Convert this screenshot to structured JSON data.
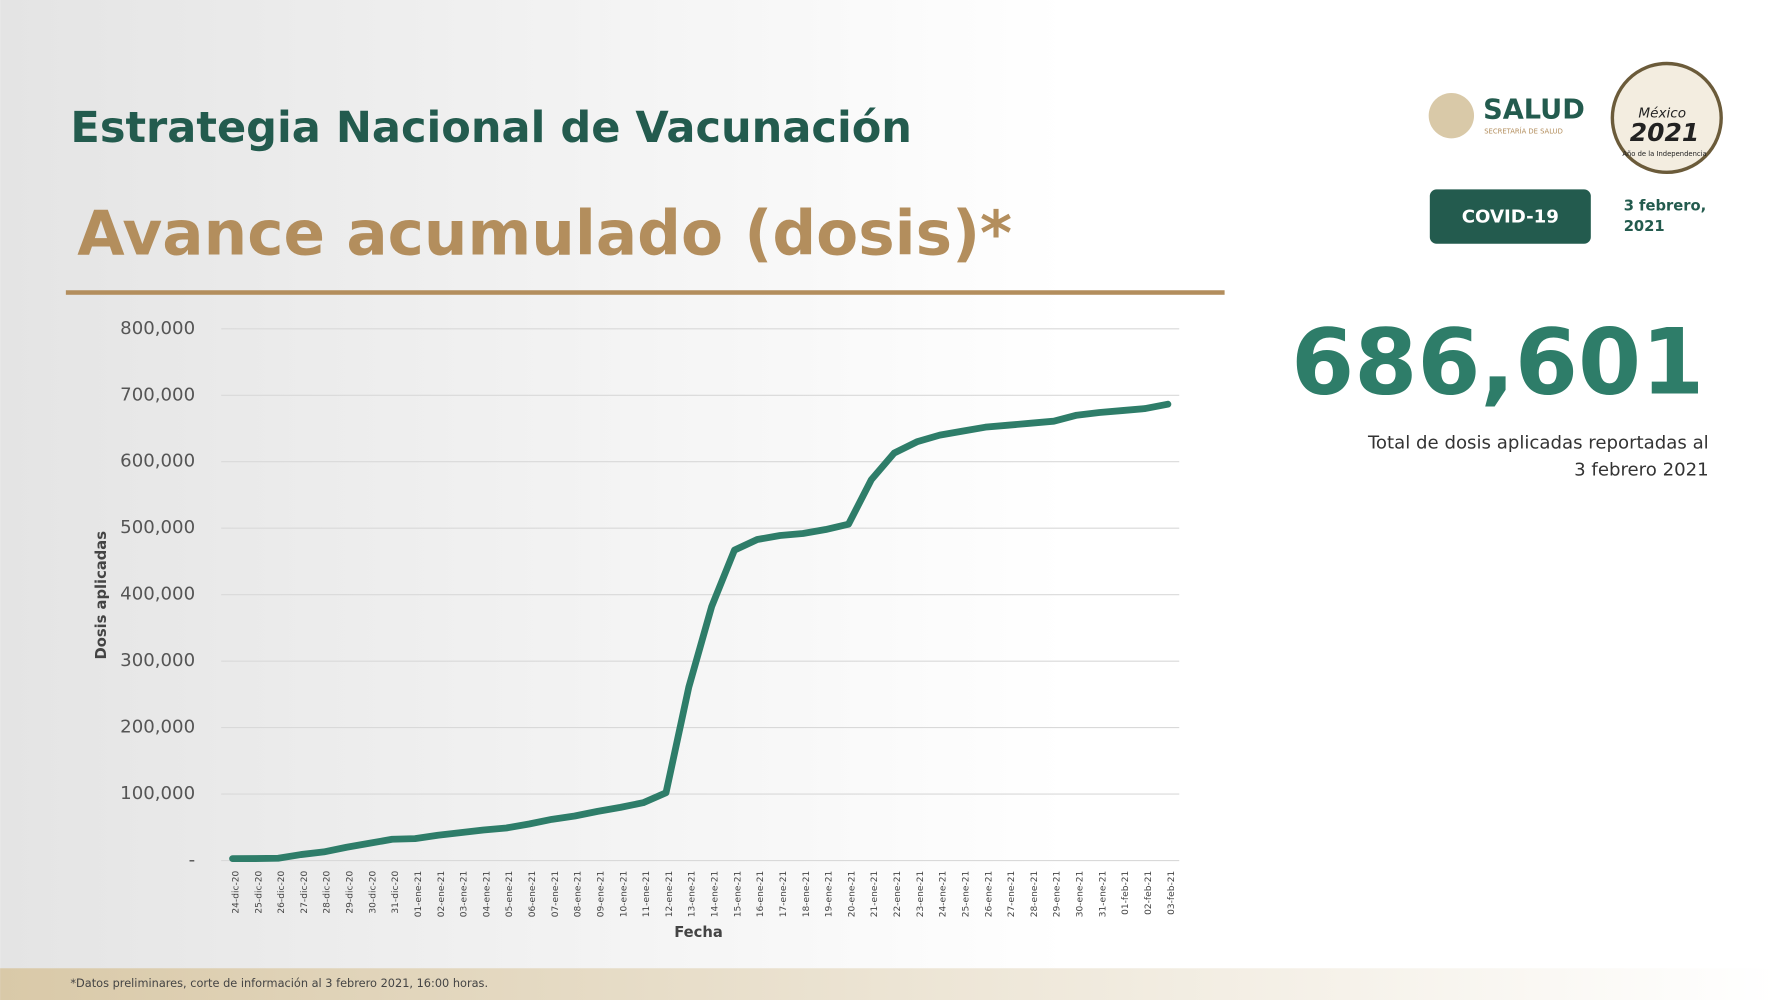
{
  "header": {
    "title": "Estrategia Nacional de Vacunación",
    "subtitle": "Avance acumulado (dosis)*",
    "logo_salud": "SALUD",
    "logo_salud_sub": "SECRETARÍA DE SALUD",
    "logo_mexico": "México",
    "logo_year": "2021",
    "logo_year_sub": "Año de la Independencia",
    "badge": "COVID-19",
    "date_line1": "3 febrero,",
    "date_line2": "2021"
  },
  "summary": {
    "total": "686,601",
    "caption_line1": "Total de dosis aplicadas reportadas al",
    "caption_line2": "3 febrero 2021"
  },
  "footnote": "*Datos preliminares, corte de información al 3 febrero 2021, 16:00 horas.",
  "chart_data": {
    "type": "line",
    "x_label": "Fecha",
    "y_label": "Dosis aplicadas",
    "color": "#2e7d69",
    "grid": true,
    "categories": [
      "24-dic-20",
      "25-dic-20",
      "26-dic-20",
      "27-dic-20",
      "28-dic-20",
      "29-dic-20",
      "30-dic-20",
      "31-dic-20",
      "01-ene-21",
      "02-ene-21",
      "03-ene-21",
      "04-ene-21",
      "05-ene-21",
      "06-ene-21",
      "07-ene-21",
      "08-ene-21",
      "09-ene-21",
      "10-ene-21",
      "11-ene-21",
      "12-ene-21",
      "13-ene-21",
      "14-ene-21",
      "15-ene-21",
      "16-ene-21",
      "17-ene-21",
      "18-ene-21",
      "19-ene-21",
      "20-ene-21",
      "21-ene-21",
      "22-ene-21",
      "23-ene-21",
      "24-ene-21",
      "25-ene-21",
      "26-ene-21",
      "27-ene-21",
      "28-ene-21",
      "29-ene-21",
      "30-ene-21",
      "31-ene-21",
      "01-feb-21",
      "02-feb-21",
      "03-feb-21"
    ],
    "values": [
      2900,
      3000,
      3500,
      9000,
      13000,
      20000,
      26000,
      32000,
      33000,
      38000,
      42000,
      46000,
      49000,
      55000,
      62000,
      67000,
      74000,
      80000,
      87000,
      102000,
      261000,
      382000,
      467000,
      483000,
      489000,
      492000,
      498000,
      506000,
      573000,
      613000,
      630000,
      640000,
      646000,
      652000,
      655000,
      658000,
      661000,
      670000,
      674000,
      677000,
      680000,
      686601
    ],
    "ylim": [
      0,
      800000
    ],
    "yticks": [
      {
        "value": 0,
        "label": "-"
      },
      {
        "value": 100000,
        "label": "100,000"
      },
      {
        "value": 200000,
        "label": "200,000"
      },
      {
        "value": 300000,
        "label": "300,000"
      },
      {
        "value": 400000,
        "label": "400,000"
      },
      {
        "value": 500000,
        "label": "500,000"
      },
      {
        "value": 600000,
        "label": "600,000"
      },
      {
        "value": 700000,
        "label": "700,000"
      },
      {
        "value": 800000,
        "label": "800,000"
      }
    ]
  }
}
